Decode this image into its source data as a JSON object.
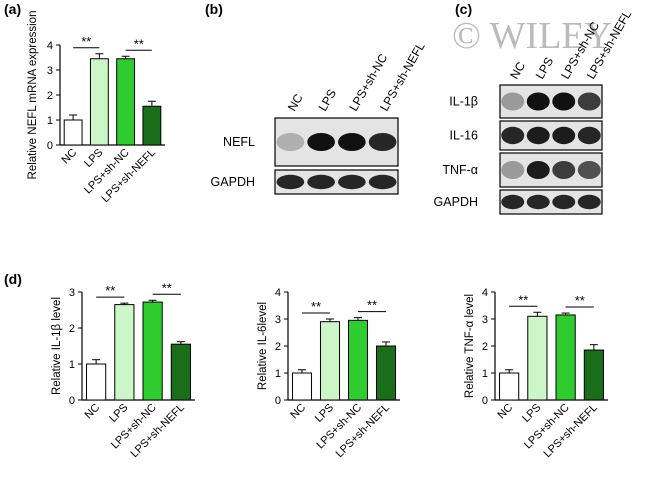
{
  "chart_data": [
    {
      "type": "bar",
      "panel": "(a)",
      "ylabel": "Relative NEFL mRNA expression",
      "categories": [
        "NC",
        "LPS",
        "LPS+sh-NC",
        "LPS+sh-NEFL"
      ],
      "values": [
        1.0,
        3.45,
        3.45,
        1.55
      ],
      "errors": [
        0.2,
        0.2,
        0.1,
        0.2
      ],
      "colors": [
        "#ffffff",
        "#ccf5c8",
        "#2ecc2e",
        "#1a6e1a"
      ],
      "ylim": [
        0,
        4
      ],
      "yticks": [
        0,
        1,
        2,
        3,
        4
      ],
      "annotations": [
        {
          "label": "**",
          "between": [
            "NC",
            "LPS"
          ]
        },
        {
          "label": "**",
          "between": [
            "LPS+sh-NC",
            "LPS+sh-NEFL"
          ]
        }
      ]
    },
    {
      "type": "bar",
      "panel": "(d)",
      "ylabel": "Relative  IL-1β level",
      "categories": [
        "NC",
        "LPS",
        "LPS+sh-NC",
        "LPS+sh-NEFL"
      ],
      "values": [
        1.0,
        2.65,
        2.72,
        1.55
      ],
      "errors": [
        0.12,
        0.04,
        0.05,
        0.07
      ],
      "colors": [
        "#ffffff",
        "#ccf5c8",
        "#2ecc2e",
        "#1a6e1a"
      ],
      "ylim": [
        0,
        3
      ],
      "yticks": [
        0,
        1,
        2,
        3
      ],
      "annotations": [
        {
          "label": "**",
          "between": [
            "NC",
            "LPS"
          ]
        },
        {
          "label": "**",
          "between": [
            "LPS+sh-NC",
            "LPS+sh-NEFL"
          ]
        }
      ]
    },
    {
      "type": "bar",
      "ylabel": "Relative IL-6level",
      "categories": [
        "NC",
        "LPS",
        "LPS+sh-NC",
        "LPS+sh-NEFL"
      ],
      "values": [
        1.0,
        2.9,
        2.95,
        2.0
      ],
      "errors": [
        0.12,
        0.1,
        0.1,
        0.15
      ],
      "colors": [
        "#ffffff",
        "#ccf5c8",
        "#2ecc2e",
        "#1a6e1a"
      ],
      "ylim": [
        0,
        4
      ],
      "yticks": [
        0,
        1,
        2,
        3,
        4
      ],
      "annotations": [
        {
          "label": "**",
          "between": [
            "NC",
            "LPS"
          ]
        },
        {
          "label": "**",
          "between": [
            "LPS+sh-NC",
            "LPS+sh-NEFL"
          ]
        }
      ]
    },
    {
      "type": "bar",
      "ylabel": "Relative TNF-α  level",
      "categories": [
        "NC",
        "LPS",
        "LPS+sh-NC",
        "LPS+sh-NEFL"
      ],
      "values": [
        1.0,
        3.1,
        3.15,
        1.85
      ],
      "errors": [
        0.12,
        0.15,
        0.07,
        0.2
      ],
      "colors": [
        "#ffffff",
        "#ccf5c8",
        "#2ecc2e",
        "#1a6e1a"
      ],
      "ylim": [
        0,
        4
      ],
      "yticks": [
        0,
        1,
        2,
        3,
        4
      ],
      "annotations": [
        {
          "label": "**",
          "between": [
            "NC",
            "LPS"
          ]
        },
        {
          "label": "**",
          "between": [
            "LPS+sh-NC",
            "LPS+sh-NEFL"
          ]
        }
      ]
    }
  ],
  "blots": [
    {
      "panel": "(b)",
      "lanes": [
        "NC",
        "LPS",
        "LPS+sh-NC",
        "LPS+sh-NEFL"
      ],
      "rows": [
        "NEFL",
        "GAPDH"
      ]
    },
    {
      "panel": "(c)",
      "watermark": "© WILEY",
      "lanes": [
        "NC",
        "LPS",
        "LPS+sh-NC",
        "LPS+sh-NEFL"
      ],
      "rows": [
        "IL-1β",
        "IL-16",
        "TNF-α",
        "GAPDH"
      ]
    }
  ]
}
